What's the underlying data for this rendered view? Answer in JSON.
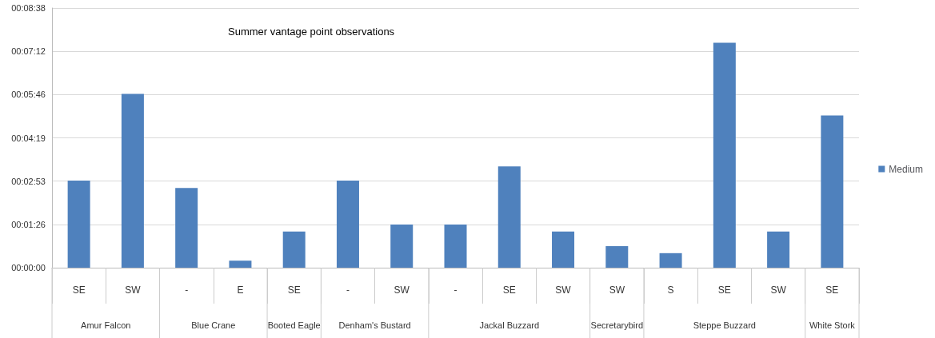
{
  "chart_data": {
    "type": "bar",
    "title": "Summer vantage point observations",
    "categories": [
      "SE",
      "SW",
      "-",
      "E",
      "SE",
      "-",
      "SW",
      "-",
      "SE",
      "SW",
      "SW",
      "S",
      "SE",
      "SW",
      "SE"
    ],
    "annotations": [
      "Amur Falcon",
      null,
      "Blue Crane",
      null,
      "Booted Eagle",
      "Denham's Bustard",
      null,
      "Jackal Buzzard",
      null,
      null,
      "Secretarybird",
      "Steppe Buzzard",
      null,
      null,
      "White Stork"
    ],
    "series": [
      {
        "name": "Medium",
        "color": "#4f81bd",
        "values": [
          174,
          347,
          159,
          14,
          72,
          174,
          86,
          86,
          202,
          72,
          43,
          29,
          449,
          72,
          304
        ]
      }
    ],
    "ylim": [
      0,
      518.4
    ],
    "yticks": [
      {
        "value": 0,
        "label": "00:00:00"
      },
      {
        "value": 86.4,
        "label": "00:01:26"
      },
      {
        "value": 172.8,
        "label": "00:02:53"
      },
      {
        "value": 259.2,
        "label": "00:04:19"
      },
      {
        "value": 345.6,
        "label": "00:05:46"
      },
      {
        "value": 432,
        "label": "00:07:12"
      },
      {
        "value": 518.4,
        "label": "00:08:38"
      }
    ],
    "grid": "y",
    "legend": "right"
  }
}
